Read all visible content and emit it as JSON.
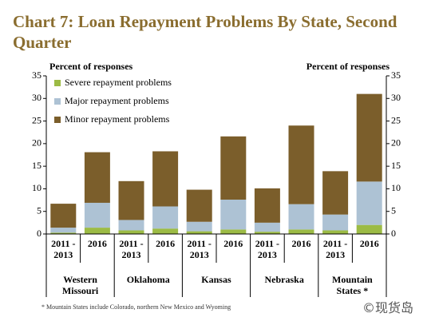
{
  "chart_data": {
    "type": "stacked_bar",
    "title": "Chart 7: Loan Repayment Problems By State, Second Quarter",
    "ylabel": "Percent of responses",
    "y2label": "Percent of responses",
    "categories": [
      "2011 - 2013",
      "2016",
      "2011 - 2013",
      "2016",
      "2011 - 2013",
      "2016",
      "2011 - 2013",
      "2016",
      "2011 - 2013",
      "2016"
    ],
    "groups": [
      "Western Missouri",
      "Oklahoma",
      "Kansas",
      "Nebraska",
      "Mountain States *"
    ],
    "series": [
      {
        "name": "Severe repayment problems",
        "color": "#9cbb45",
        "values": [
          0.3,
          1.4,
          0.8,
          1.2,
          0.6,
          1.0,
          0.5,
          1.0,
          0.8,
          2.0
        ]
      },
      {
        "name": "Major repayment problems",
        "color": "#adc2d4",
        "values": [
          1.1,
          5.5,
          2.3,
          4.9,
          2.1,
          6.6,
          2.0,
          5.6,
          3.5,
          9.6
        ]
      },
      {
        "name": "Minor repayment problems",
        "color": "#7b5e2b",
        "values": [
          5.3,
          11.2,
          8.6,
          12.2,
          7.1,
          14.0,
          7.6,
          17.4,
          9.6,
          19.4
        ]
      }
    ],
    "ylim": [
      0,
      35
    ],
    "yticks": [
      0,
      5,
      10,
      15,
      20,
      25,
      30,
      35
    ],
    "y2lim": [
      0,
      35
    ],
    "y2ticks": [
      0,
      5,
      10,
      15,
      20,
      25,
      30,
      35
    ],
    "legend": "upper left",
    "footnote": "* Mountain States include Colorado, northern New Mexico and Wyoming",
    "watermark": "©现货岛"
  }
}
